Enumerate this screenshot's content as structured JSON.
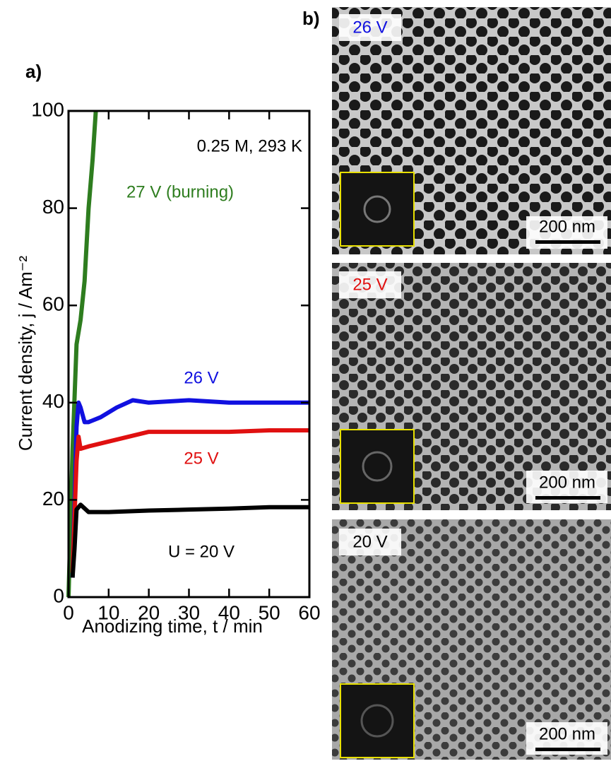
{
  "chart_data": {
    "type": "line",
    "xlabel": "Anodizing time, t / min",
    "ylabel": "Current density, j / Am⁻²",
    "annotation": "0.25 M, 293 K",
    "xlim": [
      0,
      60
    ],
    "xticks": [
      0,
      10,
      20,
      30,
      40,
      50,
      60
    ],
    "ylim": [
      0,
      100
    ],
    "yticks": [
      0,
      20,
      40,
      60,
      80,
      100
    ],
    "series": [
      {
        "name": "27 V (burning)",
        "color": "#2e7d1f",
        "x": [
          0,
          1,
          2,
          3,
          4,
          5,
          6,
          6.8
        ],
        "values": [
          0,
          30,
          52,
          57,
          65,
          80,
          90,
          100
        ]
      },
      {
        "name": "26 V",
        "color": "#1010e0",
        "x": [
          1,
          2,
          2.5,
          3,
          4,
          5,
          8,
          12,
          16,
          20,
          30,
          40,
          50,
          60
        ],
        "values": [
          4,
          35,
          40,
          39,
          36,
          36,
          37,
          39,
          40.5,
          40,
          40.5,
          40,
          40,
          40
        ]
      },
      {
        "name": "25 V",
        "color": "#e01010",
        "x": [
          1,
          2,
          2.5,
          3,
          5,
          10,
          15,
          20,
          30,
          40,
          50,
          60
        ],
        "values": [
          5,
          28,
          33,
          30.5,
          31,
          32,
          33,
          34,
          34,
          34,
          34.3,
          34.3
        ]
      },
      {
        "name": "U = 20 V",
        "color": "#000000",
        "x": [
          1,
          1.5,
          2,
          3,
          5,
          10,
          20,
          30,
          40,
          50,
          60
        ],
        "values": [
          4,
          10,
          18,
          19,
          17.5,
          17.5,
          17.8,
          18,
          18.2,
          18.5,
          18.5
        ]
      }
    ]
  },
  "panel_labels": [
    "a)",
    "b)"
  ],
  "micrographs": [
    {
      "label": "26 V",
      "scale_bar": "200 nm"
    },
    {
      "label": "25 V",
      "scale_bar": "200 nm"
    },
    {
      "label": "20 V",
      "scale_bar": "200 nm"
    }
  ]
}
